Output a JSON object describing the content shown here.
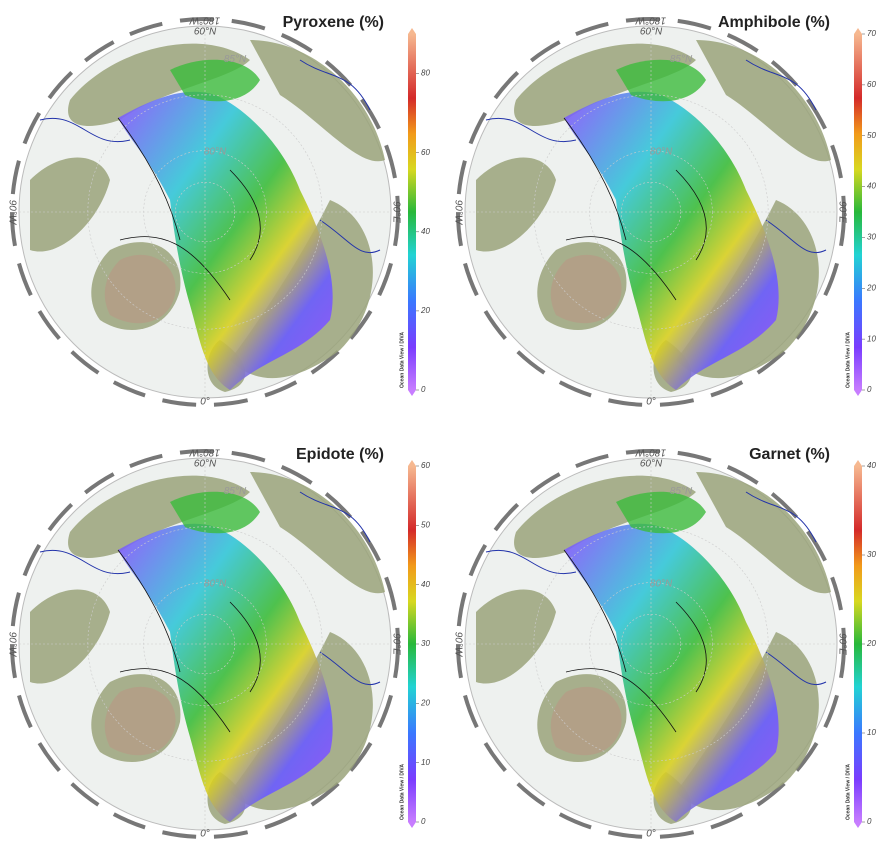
{
  "panels": [
    {
      "title": "Pyroxene (%)",
      "clim": [
        0,
        90
      ],
      "ticks": [
        0,
        20,
        40,
        60,
        80
      ],
      "labels": {
        "top": "180°W",
        "lat60": "60°N",
        "lat85": "85°N",
        "lat80": "80°N",
        "left": "90°W",
        "right": "90°E",
        "bottom": "0°"
      },
      "credit": "Ocean Data View / DIVA"
    },
    {
      "title": "Amphibole (%)",
      "clim": [
        0,
        70
      ],
      "ticks": [
        0,
        10,
        20,
        30,
        40,
        50,
        60,
        70
      ],
      "labels": {
        "top": "180°W",
        "lat60": "60°N",
        "lat85": "85°N",
        "lat80": "80°N",
        "left": "90°W",
        "right": "90°E",
        "bottom": "0°"
      },
      "credit": "Ocean Data View / DIVA"
    },
    {
      "title": "Epidote (%)",
      "clim": [
        0,
        60
      ],
      "ticks": [
        0,
        10,
        20,
        30,
        40,
        50,
        60
      ],
      "labels": {
        "top": "180°W",
        "lat60": "60°N",
        "lat85": "85°N",
        "lat80": "80°N",
        "left": "90°W",
        "right": "90°E",
        "bottom": "0°"
      },
      "credit": "Ocean Data View / DIVA"
    },
    {
      "title": "Garnet (%)",
      "clim": [
        0,
        40
      ],
      "ticks": [
        0,
        10,
        20,
        30,
        40
      ],
      "labels": {
        "top": "180°W",
        "lat60": "60°N",
        "lat85": "85°N",
        "lat80": "80°N",
        "left": "90°W",
        "right": "90°E",
        "bottom": "0°"
      },
      "credit": "Ocean Data View / DIVA"
    }
  ]
}
